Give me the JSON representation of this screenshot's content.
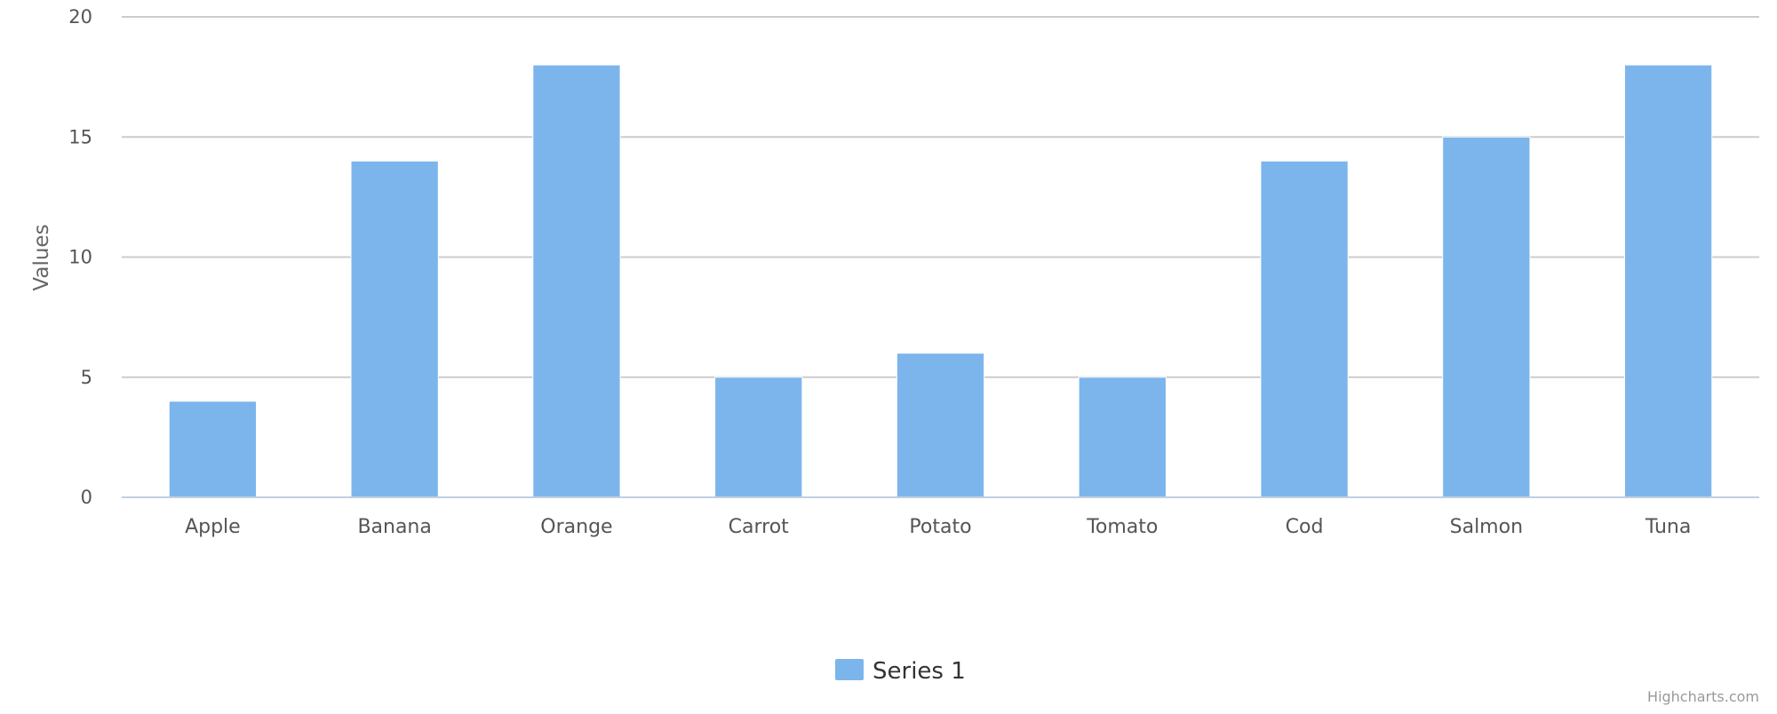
{
  "chart_data": {
    "type": "bar",
    "title": "",
    "xlabel": "",
    "ylabel": "Values",
    "ylim": [
      0,
      20
    ],
    "yticks": [
      0,
      5,
      10,
      15,
      20
    ],
    "categories": [
      "Apple",
      "Banana",
      "Orange",
      "Carrot",
      "Potato",
      "Tomato",
      "Cod",
      "Salmon",
      "Tuna"
    ],
    "series": [
      {
        "name": "Series 1",
        "color": "#7cb5ec",
        "values": [
          4,
          14,
          18,
          5,
          6,
          5,
          14,
          15,
          18
        ]
      }
    ],
    "grid": true,
    "legend": "bottom-center",
    "credits": "Highcharts.com"
  }
}
